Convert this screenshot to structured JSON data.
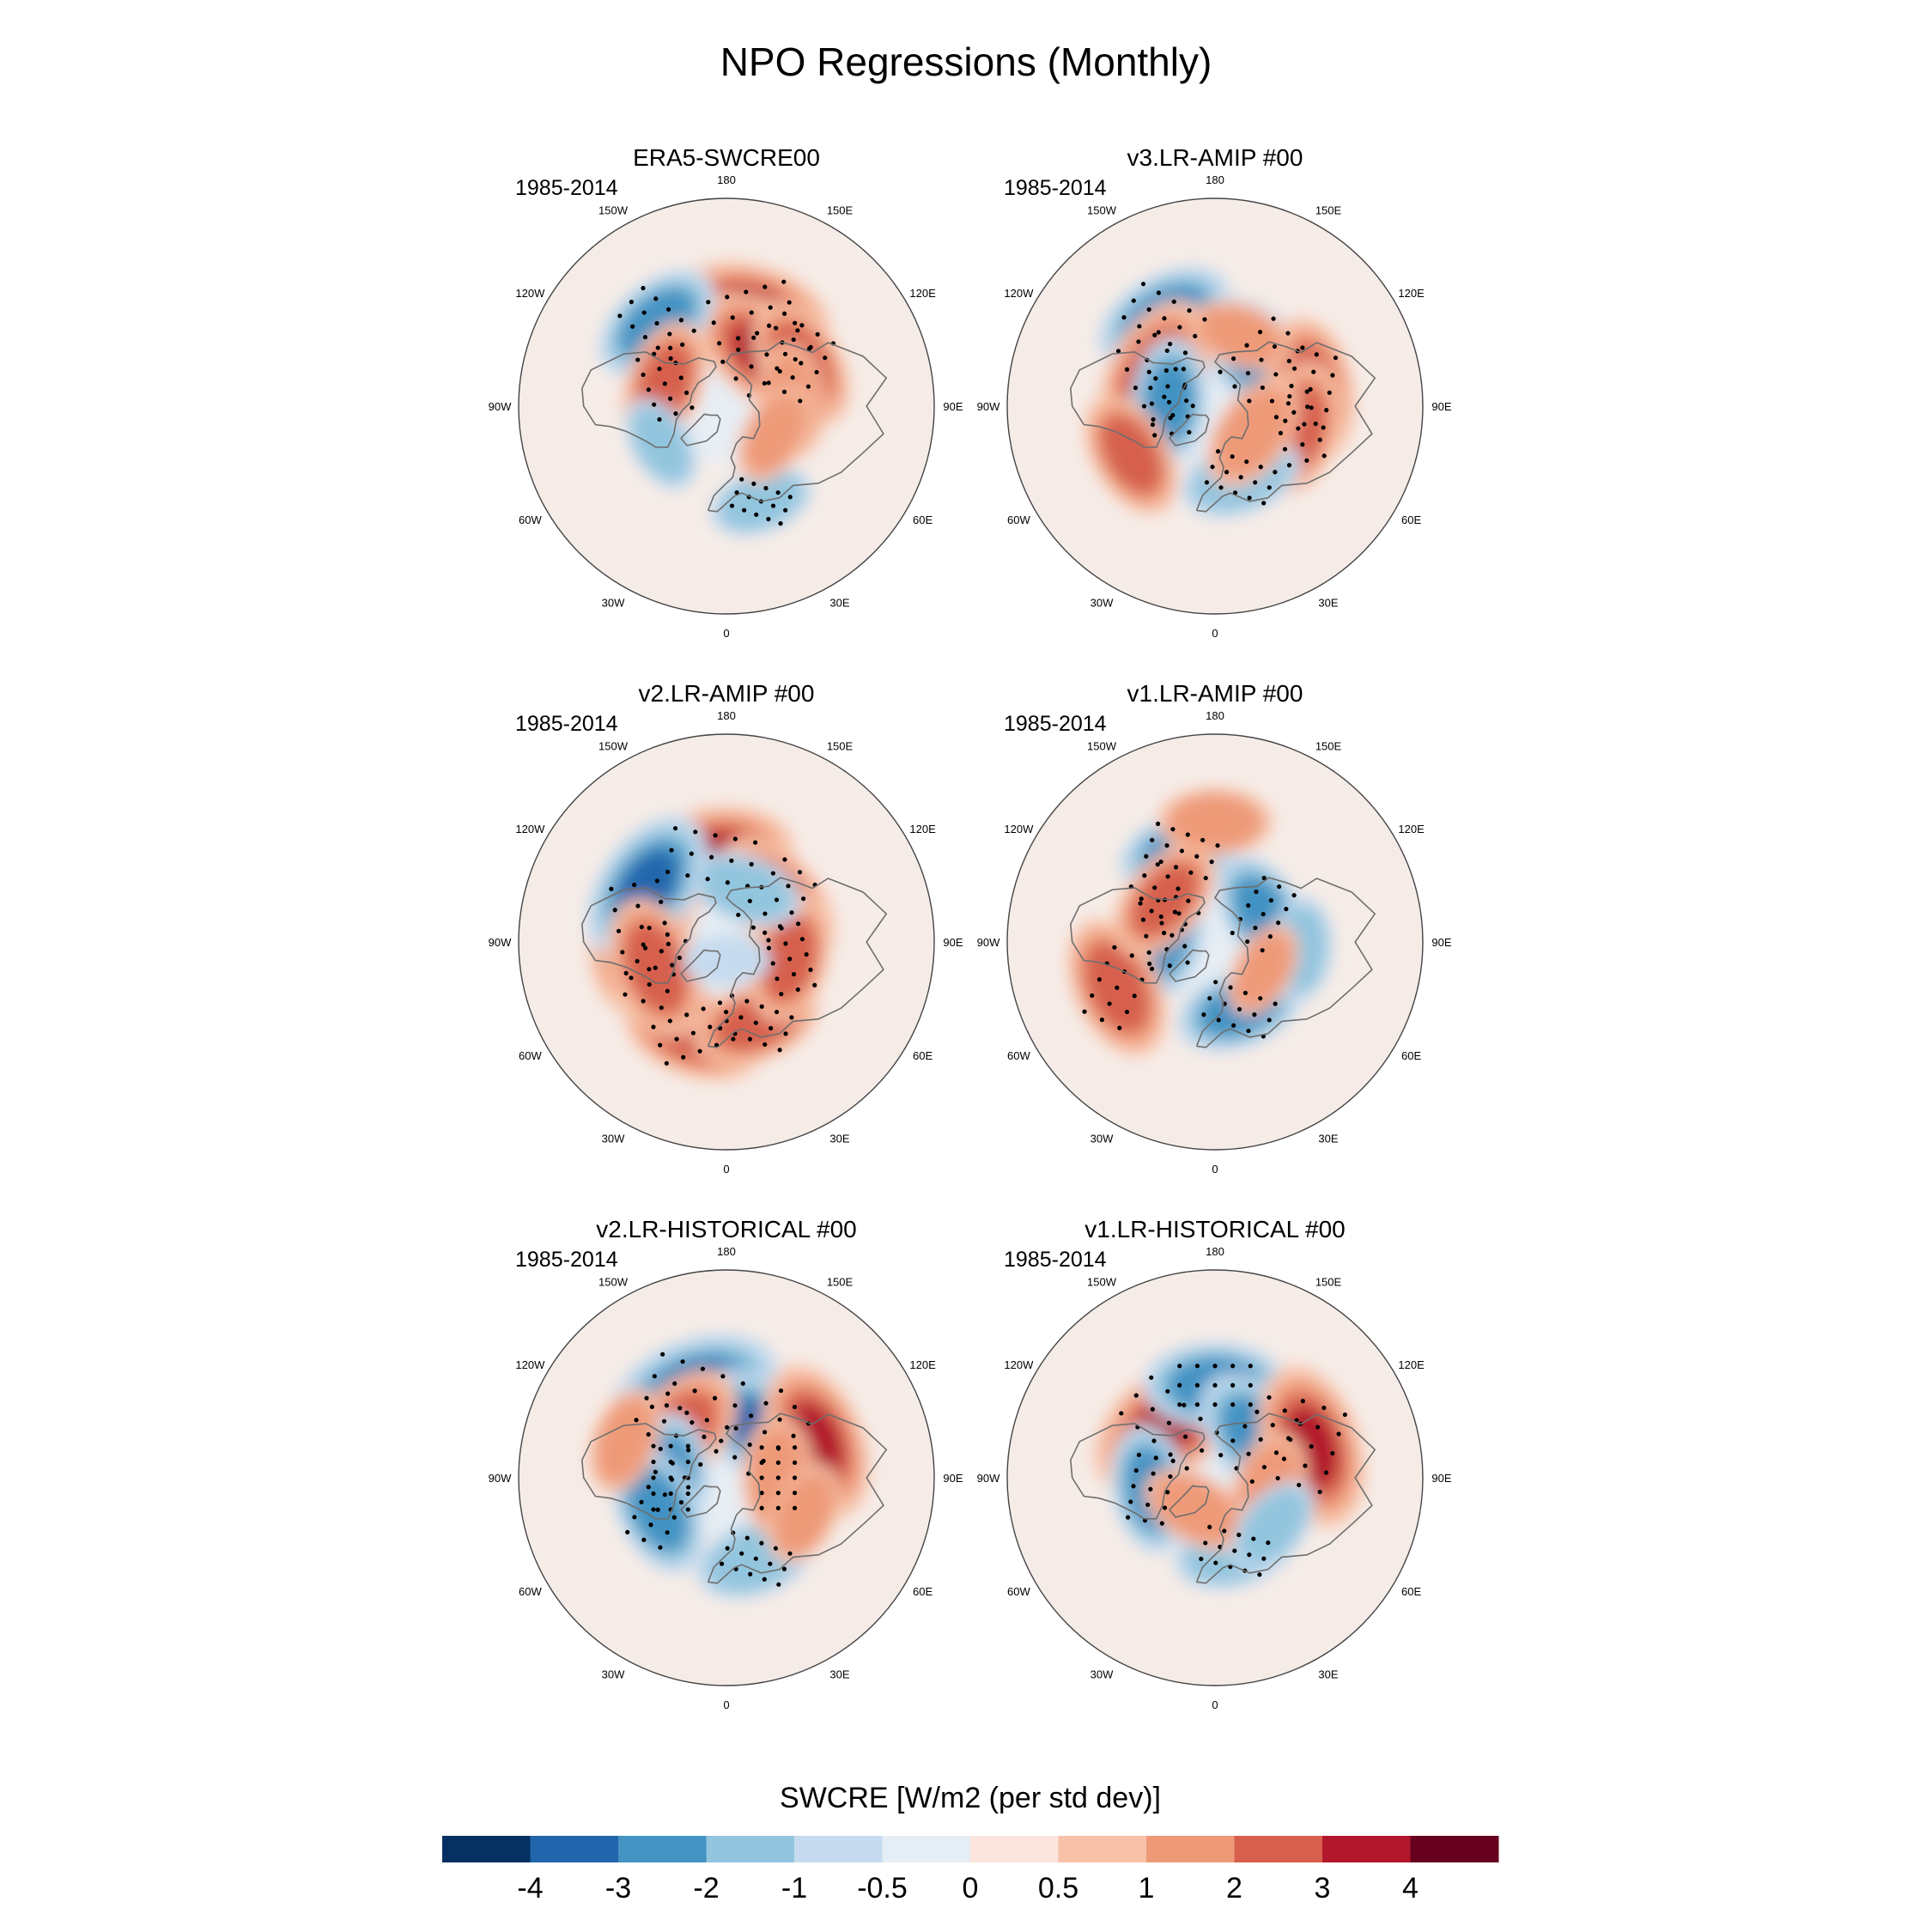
{
  "chart_data": {
    "type": "heatmap",
    "title": "NPO Regressions (Monthly)",
    "projection": "north polar stereographic",
    "panels": [
      {
        "title": "ERA5-SWCRE00",
        "period": "1985-2014",
        "blobs": [
          {
            "lon": 165,
            "lat": 40,
            "value": 3,
            "stipple": true
          },
          {
            "lon": 142,
            "lat": 55,
            "value": 3,
            "stipple": true
          },
          {
            "lon": 120,
            "lat": 45,
            "value": 2.2,
            "stipple": true
          },
          {
            "lon": -140,
            "lat": 35,
            "value": -2.2,
            "stipple": true
          },
          {
            "lon": -110,
            "lat": 55,
            "value": 2,
            "stipple": true
          },
          {
            "lon": 95,
            "lat": 55,
            "value": 1.5,
            "stipple": false
          },
          {
            "lon": -60,
            "lat": 50,
            "value": -1,
            "stipple": false
          },
          {
            "lon": 20,
            "lat": 38,
            "value": -1.2,
            "stipple": true
          },
          {
            "lon": 60,
            "lat": 60,
            "value": 1.2,
            "stipple": false
          },
          {
            "lon": 0,
            "lat": 75,
            "value": -0.4,
            "stipple": false
          }
        ]
      },
      {
        "title": "v3.LR-AMIP  #00",
        "period": "1985-2014",
        "blobs": [
          {
            "lon": -150,
            "lat": 38,
            "value": -2.5,
            "stipple": true
          },
          {
            "lon": 135,
            "lat": 55,
            "value": -2.8,
            "stipple": true
          },
          {
            "lon": -115,
            "lat": 55,
            "value": 3.2,
            "stipple": true
          },
          {
            "lon": 100,
            "lat": 40,
            "value": 2.5,
            "stipple": true
          },
          {
            "lon": 75,
            "lat": 45,
            "value": 2.2,
            "stipple": true
          },
          {
            "lon": -95,
            "lat": 65,
            "value": -2,
            "stipple": true
          },
          {
            "lon": 20,
            "lat": 50,
            "value": -1.8,
            "stipple": true
          },
          {
            "lon": 55,
            "lat": 65,
            "value": 1.8,
            "stipple": false
          },
          {
            "lon": -60,
            "lat": 40,
            "value": 2,
            "stipple": false
          },
          {
            "lon": 160,
            "lat": 50,
            "value": 1.2,
            "stipple": false
          }
        ]
      },
      {
        "title": "v2.LR-AMIP  #00",
        "period": "1985-2014",
        "blobs": [
          {
            "lon": -170,
            "lat": 45,
            "value": 3.2,
            "stipple": true
          },
          {
            "lon": -100,
            "lat": 45,
            "value": 3.5,
            "stipple": true
          },
          {
            "lon": 130,
            "lat": 55,
            "value": 2.6,
            "stipple": true
          },
          {
            "lon": -125,
            "lat": 40,
            "value": -3,
            "stipple": false
          },
          {
            "lon": -20,
            "lat": 40,
            "value": 2.5,
            "stipple": true
          },
          {
            "lon": 20,
            "lat": 45,
            "value": 2,
            "stipple": true
          },
          {
            "lon": -70,
            "lat": 50,
            "value": 2.5,
            "stipple": true
          },
          {
            "lon": 75,
            "lat": 55,
            "value": 2,
            "stipple": true
          },
          {
            "lon": 160,
            "lat": 60,
            "value": -1.5,
            "stipple": false
          },
          {
            "lon": 0,
            "lat": 80,
            "value": -0.6,
            "stipple": false
          }
        ]
      },
      {
        "title": "v1.LR-AMIP  #00",
        "period": "1985-2014",
        "blobs": [
          {
            "lon": -160,
            "lat": 40,
            "value": -2,
            "stipple": true
          },
          {
            "lon": 120,
            "lat": 60,
            "value": -2,
            "stipple": true
          },
          {
            "lon": -100,
            "lat": 62,
            "value": -2.2,
            "stipple": true
          },
          {
            "lon": 20,
            "lat": 52,
            "value": -2,
            "stipple": true
          },
          {
            "lon": -65,
            "lat": 35,
            "value": 2.5,
            "stipple": true
          },
          {
            "lon": -130,
            "lat": 55,
            "value": 2,
            "stipple": true
          },
          {
            "lon": 180,
            "lat": 30,
            "value": 1.5,
            "stipple": false
          },
          {
            "lon": 85,
            "lat": 45,
            "value": -1.2,
            "stipple": false
          },
          {
            "lon": 60,
            "lat": 60,
            "value": 1,
            "stipple": false
          }
        ]
      },
      {
        "title": "v2.LR-HISTORICAL  #00",
        "period": "1985-2014",
        "blobs": [
          {
            "lon": -160,
            "lat": 42,
            "value": -3.5,
            "stipple": true
          },
          {
            "lon": 140,
            "lat": 58,
            "value": -3,
            "stipple": true
          },
          {
            "lon": -130,
            "lat": 55,
            "value": 2.8,
            "stipple": true
          },
          {
            "lon": 112,
            "lat": 40,
            "value": 3,
            "stipple": false
          },
          {
            "lon": -90,
            "lat": 60,
            "value": -2,
            "stipple": true
          },
          {
            "lon": -65,
            "lat": 50,
            "value": -2.2,
            "stipple": true
          },
          {
            "lon": 20,
            "lat": 45,
            "value": -1.8,
            "stipple": true
          },
          {
            "lon": 90,
            "lat": 62,
            "value": 1.8,
            "stipple": true
          },
          {
            "lon": 65,
            "lat": 45,
            "value": 1.2,
            "stipple": false
          },
          {
            "lon": -110,
            "lat": 35,
            "value": 1.3,
            "stipple": false
          }
        ]
      },
      {
        "title": "v1.LR-HISTORICAL  #00",
        "period": "1985-2014",
        "blobs": [
          {
            "lon": -140,
            "lat": 52,
            "value": 3.5,
            "stipple": true
          },
          {
            "lon": 180,
            "lat": 42,
            "value": -2.5,
            "stipple": true
          },
          {
            "lon": 130,
            "lat": 58,
            "value": -2.8,
            "stipple": true
          },
          {
            "lon": 108,
            "lat": 38,
            "value": 3.2,
            "stipple": true
          },
          {
            "lon": -80,
            "lat": 55,
            "value": -2,
            "stipple": true
          },
          {
            "lon": 15,
            "lat": 50,
            "value": -1.8,
            "stipple": true
          },
          {
            "lon": 75,
            "lat": 60,
            "value": 1.8,
            "stipple": false
          },
          {
            "lon": -30,
            "lat": 70,
            "value": 1.5,
            "stipple": false
          },
          {
            "lon": 50,
            "lat": 50,
            "value": -1.2,
            "stipple": false
          }
        ]
      }
    ],
    "longitude_labels": [
      {
        "lon": 180,
        "label": "180"
      },
      {
        "lon": 150,
        "label": "150E"
      },
      {
        "lon": 120,
        "label": "120E"
      },
      {
        "lon": 90,
        "label": "90E"
      },
      {
        "lon": 60,
        "label": "60E"
      },
      {
        "lon": 30,
        "label": "30E"
      },
      {
        "lon": 0,
        "label": "0"
      },
      {
        "lon": -30,
        "label": "30W"
      },
      {
        "lon": -60,
        "label": "60W"
      },
      {
        "lon": -90,
        "label": "90W"
      },
      {
        "lon": -120,
        "label": "120W"
      },
      {
        "lon": -150,
        "label": "150W"
      }
    ],
    "colorbar": {
      "title": "SWCRE [W/m2 (per std dev)]",
      "colors": [
        "#053061",
        "#2166ac",
        "#4393c3",
        "#92c5de",
        "#c6dbef",
        "#e5eef5",
        "#fbe5de",
        "#f7c2a9",
        "#ee9a78",
        "#d6604d",
        "#b2182b",
        "#67001f"
      ],
      "levels": [
        -4,
        -3,
        -2,
        -1,
        -0.5,
        0,
        0.5,
        1,
        2,
        3,
        4
      ],
      "tick_labels": [
        "-4",
        "-3",
        "-2",
        "-1",
        "-0.5",
        "0",
        "0.5",
        "1",
        "2",
        "3",
        "4"
      ]
    }
  }
}
